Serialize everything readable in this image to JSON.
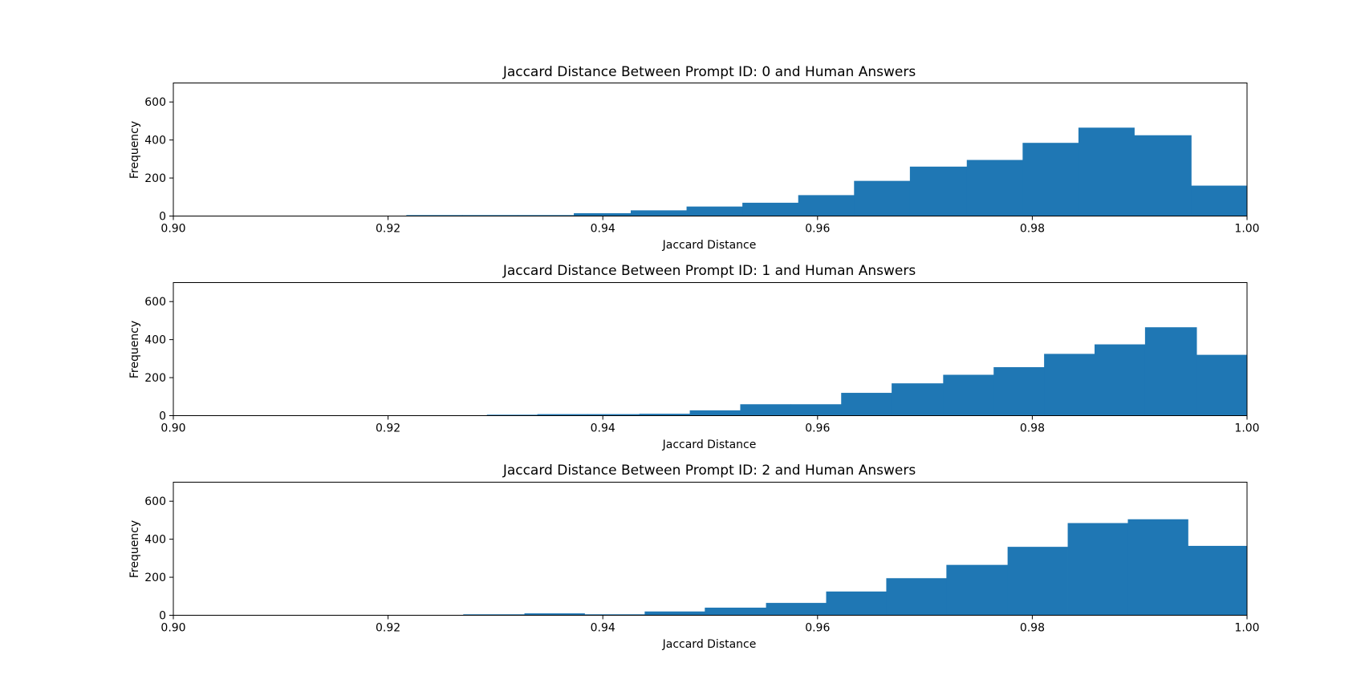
{
  "chart_data": [
    {
      "type": "histogram",
      "title": "Jaccard Distance Between Prompt ID: 0 and Human Answers",
      "xlabel": "Jaccard Distance",
      "ylabel": "Frequency",
      "xlim": [
        0.9,
        1.0
      ],
      "ylim": [
        0,
        700
      ],
      "xticks": [
        "0.90",
        "0.92",
        "0.94",
        "0.96",
        "0.98",
        "1.00"
      ],
      "yticks": [
        "0",
        "200",
        "400",
        "600"
      ],
      "grid": false,
      "color": "#1f77b4",
      "bin_edges": [
        0.9113,
        0.9165,
        0.9217,
        0.9269,
        0.9321,
        0.9373,
        0.9426,
        0.9478,
        0.953,
        0.9582,
        0.9634,
        0.9686,
        0.9739,
        0.9791,
        0.9843,
        0.9895,
        0.9948,
        1.0
      ],
      "values": [
        0,
        0,
        5,
        5,
        5,
        15,
        30,
        50,
        70,
        110,
        185,
        260,
        295,
        385,
        465,
        425,
        160
      ]
    },
    {
      "type": "histogram",
      "title": "Jaccard Distance Between Prompt ID: 1 and Human Answers",
      "xlabel": "Jaccard Distance",
      "ylabel": "Frequency",
      "xlim": [
        0.9,
        1.0
      ],
      "ylim": [
        0,
        700
      ],
      "xticks": [
        "0.90",
        "0.92",
        "0.94",
        "0.96",
        "0.98",
        "1.00"
      ],
      "yticks": [
        "0",
        "200",
        "400",
        "600"
      ],
      "grid": false,
      "color": "#1f77b4",
      "bin_edges": [
        0.9104,
        0.9151,
        0.9198,
        0.9245,
        0.9292,
        0.9339,
        0.9386,
        0.9434,
        0.9481,
        0.9528,
        0.9575,
        0.9622,
        0.9669,
        0.9717,
        0.9764,
        0.9811,
        0.9858,
        0.9905,
        0.9953,
        1.0
      ],
      "values": [
        2,
        2,
        2,
        2,
        5,
        8,
        8,
        10,
        28,
        60,
        60,
        120,
        170,
        215,
        255,
        325,
        375,
        465,
        320
      ]
    },
    {
      "type": "histogram",
      "title": "Jaccard Distance Between Prompt ID: 2 and Human Answers",
      "xlabel": "Jaccard Distance",
      "ylabel": "Frequency",
      "xlim": [
        0.9,
        1.0
      ],
      "ylim": [
        0,
        700
      ],
      "xticks": [
        "0.90",
        "0.92",
        "0.94",
        "0.96",
        "0.98",
        "1.00"
      ],
      "yticks": [
        "0",
        "200",
        "400",
        "600"
      ],
      "grid": false,
      "color": "#1f77b4",
      "bin_edges": [
        0.927,
        0.9327,
        0.9383,
        0.9439,
        0.9495,
        0.9552,
        0.9608,
        0.9664,
        0.972,
        0.9777,
        0.9833,
        0.9889,
        0.9945,
        1.0
      ],
      "values": [
        5,
        10,
        5,
        20,
        40,
        65,
        125,
        195,
        265,
        360,
        485,
        505,
        365
      ]
    }
  ]
}
